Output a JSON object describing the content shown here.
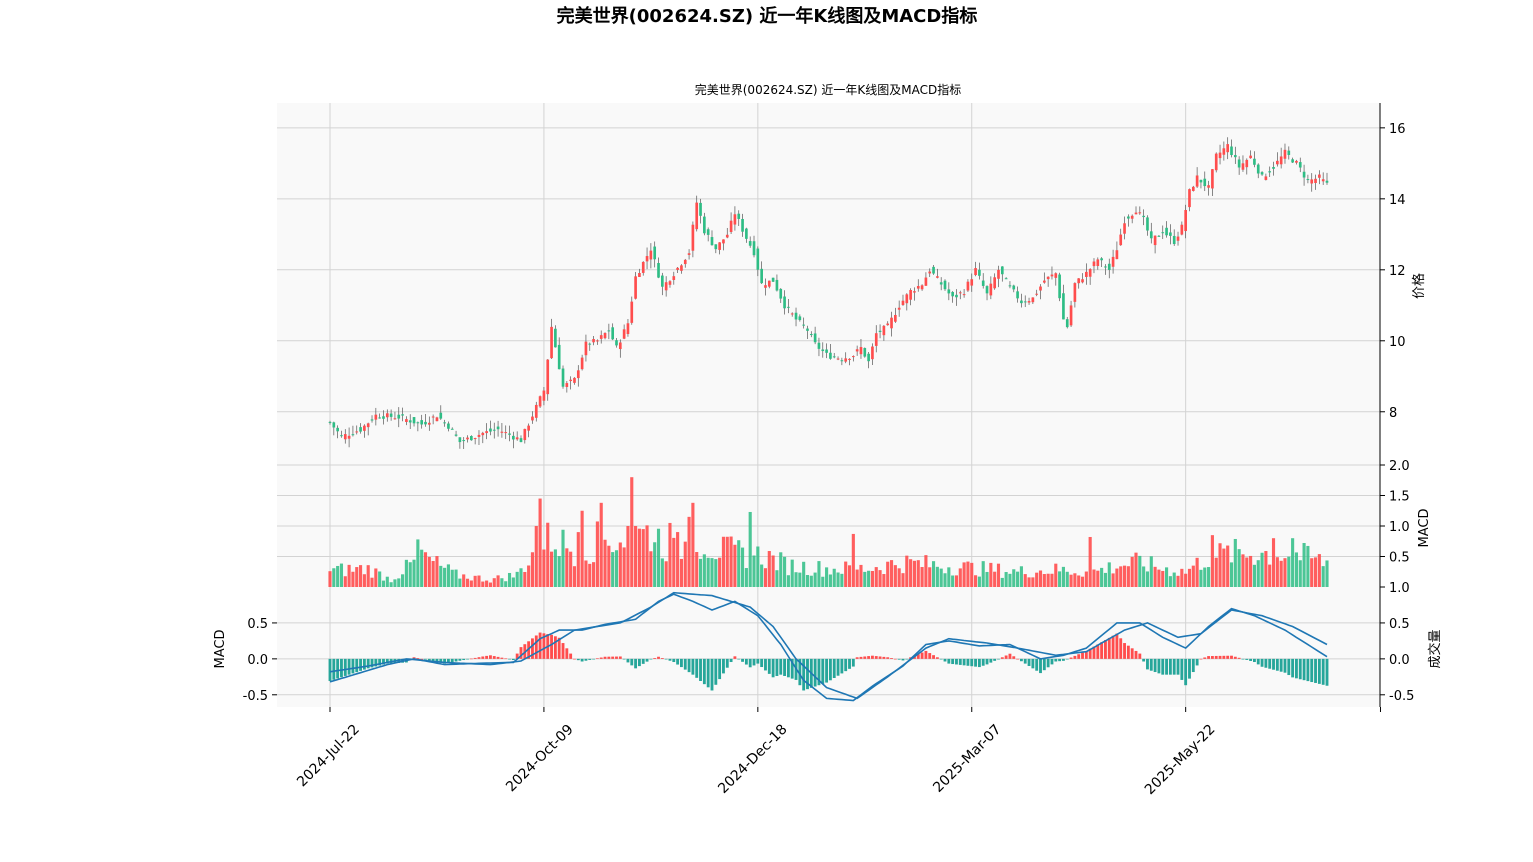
{
  "figure": {
    "suptitle": "完美世界(002624.SZ) 近一年K线图及MACD指标",
    "title": "完美世界(002624.SZ) 近一年K线图及MACD指标"
  },
  "colors": {
    "up": "#ff4d4d",
    "down": "#2ebd85",
    "dif": "#1f77b4",
    "dea": "#1f77b4",
    "grid": "#d3d3d3",
    "panel_bg": "#f9f9f9"
  },
  "chart_data": [
    {
      "type": "candlestick",
      "panel": "price",
      "ylabel": "价格",
      "ylim": [
        6.5,
        16.7
      ],
      "yticks": [
        8,
        10,
        12,
        14,
        16
      ],
      "x_ticks": [
        "2024-Jul-22",
        "2024-Oct-09",
        "2024-Dec-18",
        "2025-Mar-07",
        "2025-May-22"
      ],
      "x_tick_index": [
        0,
        56,
        112,
        168,
        224
      ],
      "anchors": [
        {
          "i": 0,
          "c": 7.7
        },
        {
          "i": 3,
          "c": 7.3
        },
        {
          "i": 8,
          "c": 7.5
        },
        {
          "i": 12,
          "c": 7.9
        },
        {
          "i": 18,
          "c": 7.85
        },
        {
          "i": 24,
          "c": 7.65
        },
        {
          "i": 28,
          "c": 7.9
        },
        {
          "i": 31,
          "c": 7.6
        },
        {
          "i": 34,
          "c": 7.15
        },
        {
          "i": 40,
          "c": 7.4
        },
        {
          "i": 44,
          "c": 7.5
        },
        {
          "i": 48,
          "c": 7.3
        },
        {
          "i": 50,
          "c": 7.2
        },
        {
          "i": 53,
          "c": 7.9
        },
        {
          "i": 56,
          "c": 8.6
        },
        {
          "i": 58,
          "c": 10.4
        },
        {
          "i": 61,
          "c": 8.7
        },
        {
          "i": 64,
          "c": 8.9
        },
        {
          "i": 67,
          "c": 9.9
        },
        {
          "i": 70,
          "c": 10.0
        },
        {
          "i": 73,
          "c": 10.3
        },
        {
          "i": 75,
          "c": 9.8
        },
        {
          "i": 78,
          "c": 10.5
        },
        {
          "i": 80,
          "c": 11.8
        },
        {
          "i": 82,
          "c": 12.2
        },
        {
          "i": 84,
          "c": 12.6
        },
        {
          "i": 87,
          "c": 11.5
        },
        {
          "i": 90,
          "c": 11.9
        },
        {
          "i": 94,
          "c": 12.5
        },
        {
          "i": 96,
          "c": 13.9
        },
        {
          "i": 98,
          "c": 13.1
        },
        {
          "i": 101,
          "c": 12.6
        },
        {
          "i": 104,
          "c": 13.0
        },
        {
          "i": 106,
          "c": 13.6
        },
        {
          "i": 109,
          "c": 12.9
        },
        {
          "i": 111,
          "c": 12.5
        },
        {
          "i": 113,
          "c": 11.6
        },
        {
          "i": 116,
          "c": 11.7
        },
        {
          "i": 119,
          "c": 11.0
        },
        {
          "i": 122,
          "c": 10.6
        },
        {
          "i": 125,
          "c": 10.3
        },
        {
          "i": 127,
          "c": 9.9
        },
        {
          "i": 130,
          "c": 9.6
        },
        {
          "i": 134,
          "c": 9.5
        },
        {
          "i": 137,
          "c": 9.6
        },
        {
          "i": 139,
          "c": 9.8
        },
        {
          "i": 141,
          "c": 9.4
        },
        {
          "i": 143,
          "c": 10.2
        },
        {
          "i": 146,
          "c": 10.4
        },
        {
          "i": 149,
          "c": 11.0
        },
        {
          "i": 152,
          "c": 11.4
        },
        {
          "i": 155,
          "c": 11.6
        },
        {
          "i": 157,
          "c": 12.0
        },
        {
          "i": 160,
          "c": 11.6
        },
        {
          "i": 163,
          "c": 11.2
        },
        {
          "i": 166,
          "c": 11.4
        },
        {
          "i": 169,
          "c": 12.0
        },
        {
          "i": 172,
          "c": 11.3
        },
        {
          "i": 175,
          "c": 12.0
        },
        {
          "i": 178,
          "c": 11.5
        },
        {
          "i": 181,
          "c": 11.1
        },
        {
          "i": 184,
          "c": 11.2
        },
        {
          "i": 187,
          "c": 11.7
        },
        {
          "i": 190,
          "c": 11.9
        },
        {
          "i": 192,
          "c": 10.6
        },
        {
          "i": 193,
          "c": 10.4
        },
        {
          "i": 195,
          "c": 11.6
        },
        {
          "i": 198,
          "c": 11.9
        },
        {
          "i": 201,
          "c": 12.3
        },
        {
          "i": 204,
          "c": 12.0
        },
        {
          "i": 206,
          "c": 12.6
        },
        {
          "i": 208,
          "c": 13.4
        },
        {
          "i": 211,
          "c": 13.7
        },
        {
          "i": 213,
          "c": 13.4
        },
        {
          "i": 215,
          "c": 12.8
        },
        {
          "i": 218,
          "c": 13.1
        },
        {
          "i": 221,
          "c": 12.8
        },
        {
          "i": 223,
          "c": 13.2
        },
        {
          "i": 225,
          "c": 14.2
        },
        {
          "i": 227,
          "c": 14.6
        },
        {
          "i": 230,
          "c": 14.3
        },
        {
          "i": 232,
          "c": 15.2
        },
        {
          "i": 235,
          "c": 15.5
        },
        {
          "i": 238,
          "c": 14.9
        },
        {
          "i": 241,
          "c": 15.2
        },
        {
          "i": 244,
          "c": 14.6
        },
        {
          "i": 247,
          "c": 14.9
        },
        {
          "i": 250,
          "c": 15.3
        },
        {
          "i": 253,
          "c": 15.0
        },
        {
          "i": 256,
          "c": 14.5
        },
        {
          "i": 259,
          "c": 14.6
        },
        {
          "i": 261,
          "c": 14.4
        }
      ],
      "n": 262
    },
    {
      "type": "bar",
      "panel": "volume",
      "ylabel": "MACD",
      "ylim": [
        0,
        2.0
      ],
      "yticks": [
        0.5,
        1.0,
        1.5,
        2.0
      ],
      "anchors": [
        {
          "i": 0,
          "v": 0.27
        },
        {
          "i": 10,
          "v": 0.3
        },
        {
          "i": 16,
          "v": 0.12
        },
        {
          "i": 24,
          "v": 0.5
        },
        {
          "i": 33,
          "v": 0.2
        },
        {
          "i": 42,
          "v": 0.12
        },
        {
          "i": 49,
          "v": 0.2
        },
        {
          "i": 55,
          "v": 0.7
        },
        {
          "i": 58,
          "v": 0.8
        },
        {
          "i": 66,
          "v": 0.55
        },
        {
          "i": 70,
          "v": 0.75
        },
        {
          "i": 78,
          "v": 0.8
        },
        {
          "i": 84,
          "v": 0.9
        },
        {
          "i": 90,
          "v": 0.6
        },
        {
          "i": 96,
          "v": 0.8
        },
        {
          "i": 102,
          "v": 0.6
        },
        {
          "i": 108,
          "v": 0.55
        },
        {
          "i": 114,
          "v": 0.5
        },
        {
          "i": 120,
          "v": 0.35
        },
        {
          "i": 130,
          "v": 0.3
        },
        {
          "i": 140,
          "v": 0.3
        },
        {
          "i": 150,
          "v": 0.4
        },
        {
          "i": 160,
          "v": 0.35
        },
        {
          "i": 170,
          "v": 0.3
        },
        {
          "i": 180,
          "v": 0.25
        },
        {
          "i": 190,
          "v": 0.28
        },
        {
          "i": 200,
          "v": 0.25
        },
        {
          "i": 206,
          "v": 0.35
        },
        {
          "i": 212,
          "v": 0.4
        },
        {
          "i": 218,
          "v": 0.3
        },
        {
          "i": 224,
          "v": 0.25
        },
        {
          "i": 230,
          "v": 0.5
        },
        {
          "i": 236,
          "v": 0.55
        },
        {
          "i": 244,
          "v": 0.55
        },
        {
          "i": 252,
          "v": 0.55
        },
        {
          "i": 261,
          "v": 0.4
        }
      ],
      "spikes": [
        {
          "i": 23,
          "v": 0.78
        },
        {
          "i": 25,
          "v": 0.57
        },
        {
          "i": 54,
          "v": 1.0
        },
        {
          "i": 55,
          "v": 1.45
        },
        {
          "i": 65,
          "v": 0.9
        },
        {
          "i": 66,
          "v": 1.25
        },
        {
          "i": 71,
          "v": 1.38
        },
        {
          "i": 78,
          "v": 1.0
        },
        {
          "i": 79,
          "v": 1.8
        },
        {
          "i": 80,
          "v": 1.0
        },
        {
          "i": 89,
          "v": 1.05
        },
        {
          "i": 94,
          "v": 1.15
        },
        {
          "i": 95,
          "v": 1.38
        },
        {
          "i": 110,
          "v": 1.23
        },
        {
          "i": 137,
          "v": 0.87
        },
        {
          "i": 199,
          "v": 0.82
        },
        {
          "i": 231,
          "v": 0.85
        },
        {
          "i": 247,
          "v": 0.8
        },
        {
          "i": 252,
          "v": 0.8
        }
      ],
      "axis_max": 2.0
    },
    {
      "type": "line",
      "panel": "macd",
      "ylabel": "MACD",
      "ylabel_right": "成交量",
      "ylim": [
        -0.67,
        1.0
      ],
      "yticks": [
        -0.5,
        0.0,
        0.5
      ],
      "yticks_right": [
        -0.5,
        0.0,
        0.5,
        1.0
      ],
      "series": [
        {
          "role": "dif",
          "anchors": [
            {
              "i": 0,
              "v": -0.32
            },
            {
              "i": 15,
              "v": -0.08
            },
            {
              "i": 22,
              "v": 0.0
            },
            {
              "i": 30,
              "v": -0.08
            },
            {
              "i": 40,
              "v": -0.06
            },
            {
              "i": 48,
              "v": -0.05
            },
            {
              "i": 55,
              "v": 0.28
            },
            {
              "i": 60,
              "v": 0.4
            },
            {
              "i": 66,
              "v": 0.4
            },
            {
              "i": 72,
              "v": 0.48
            },
            {
              "i": 80,
              "v": 0.55
            },
            {
              "i": 86,
              "v": 0.8
            },
            {
              "i": 90,
              "v": 0.9
            },
            {
              "i": 95,
              "v": 0.8
            },
            {
              "i": 100,
              "v": 0.68
            },
            {
              "i": 106,
              "v": 0.8
            },
            {
              "i": 112,
              "v": 0.6
            },
            {
              "i": 118,
              "v": 0.2
            },
            {
              "i": 124,
              "v": -0.3
            },
            {
              "i": 130,
              "v": -0.55
            },
            {
              "i": 137,
              "v": -0.58
            },
            {
              "i": 142,
              "v": -0.38
            },
            {
              "i": 150,
              "v": -0.1
            },
            {
              "i": 156,
              "v": 0.2
            },
            {
              "i": 162,
              "v": 0.25
            },
            {
              "i": 170,
              "v": 0.18
            },
            {
              "i": 178,
              "v": 0.2
            },
            {
              "i": 186,
              "v": 0.0
            },
            {
              "i": 192,
              "v": 0.05
            },
            {
              "i": 198,
              "v": 0.15
            },
            {
              "i": 206,
              "v": 0.5
            },
            {
              "i": 212,
              "v": 0.5
            },
            {
              "i": 218,
              "v": 0.3
            },
            {
              "i": 224,
              "v": 0.15
            },
            {
              "i": 230,
              "v": 0.45
            },
            {
              "i": 236,
              "v": 0.7
            },
            {
              "i": 242,
              "v": 0.6
            },
            {
              "i": 250,
              "v": 0.4
            },
            {
              "i": 261,
              "v": 0.03
            }
          ]
        },
        {
          "role": "dea",
          "anchors": [
            {
              "i": 0,
              "v": -0.18
            },
            {
              "i": 10,
              "v": -0.1
            },
            {
              "i": 20,
              "v": 0.0
            },
            {
              "i": 30,
              "v": -0.05
            },
            {
              "i": 42,
              "v": -0.08
            },
            {
              "i": 50,
              "v": -0.03
            },
            {
              "i": 58,
              "v": 0.2
            },
            {
              "i": 64,
              "v": 0.4
            },
            {
              "i": 76,
              "v": 0.5
            },
            {
              "i": 84,
              "v": 0.72
            },
            {
              "i": 90,
              "v": 0.92
            },
            {
              "i": 100,
              "v": 0.88
            },
            {
              "i": 110,
              "v": 0.72
            },
            {
              "i": 116,
              "v": 0.45
            },
            {
              "i": 122,
              "v": 0.0
            },
            {
              "i": 130,
              "v": -0.4
            },
            {
              "i": 138,
              "v": -0.55
            },
            {
              "i": 146,
              "v": -0.25
            },
            {
              "i": 156,
              "v": 0.15
            },
            {
              "i": 162,
              "v": 0.28
            },
            {
              "i": 172,
              "v": 0.22
            },
            {
              "i": 180,
              "v": 0.15
            },
            {
              "i": 190,
              "v": 0.05
            },
            {
              "i": 198,
              "v": 0.1
            },
            {
              "i": 208,
              "v": 0.4
            },
            {
              "i": 214,
              "v": 0.5
            },
            {
              "i": 222,
              "v": 0.3
            },
            {
              "i": 228,
              "v": 0.35
            },
            {
              "i": 236,
              "v": 0.68
            },
            {
              "i": 244,
              "v": 0.6
            },
            {
              "i": 252,
              "v": 0.45
            },
            {
              "i": 261,
              "v": 0.2
            }
          ]
        }
      ]
    }
  ]
}
